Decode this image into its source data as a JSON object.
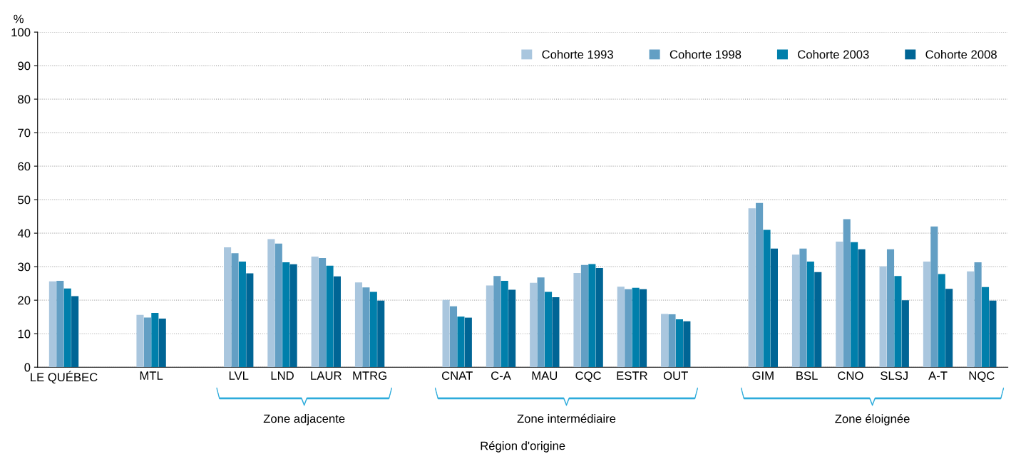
{
  "chart_data": {
    "type": "bar",
    "ylabel": "%",
    "xlabel": "Région d'origine",
    "categories": [
      "LE QUÉBEC",
      null,
      "MTL",
      null,
      "LVL",
      "LND",
      "LAUR",
      "MTRG",
      null,
      "CNAT",
      "C-A",
      "MAU",
      "CQC",
      "ESTR",
      "OUT",
      null,
      "GIM",
      "BSL",
      "CNO",
      "SLSJ",
      "A-T",
      "NQC"
    ],
    "series": [
      {
        "name": "Cohorte 1993",
        "color": "#a9c6de",
        "values": [
          25.6,
          null,
          15.6,
          null,
          35.8,
          38.2,
          33.0,
          25.3,
          null,
          20.1,
          24.4,
          25.2,
          28.1,
          24.0,
          15.9,
          null,
          47.4,
          33.6,
          37.5,
          30.1,
          31.5,
          28.6
        ]
      },
      {
        "name": "Cohorte 1998",
        "color": "#639fc4",
        "values": [
          25.8,
          null,
          14.8,
          null,
          34.0,
          36.9,
          32.6,
          23.8,
          null,
          18.2,
          27.2,
          26.8,
          30.5,
          23.3,
          15.8,
          null,
          49.0,
          35.4,
          44.2,
          35.2,
          42.0,
          31.3
        ]
      },
      {
        "name": "Cohorte 2003",
        "color": "#007fab",
        "values": [
          23.5,
          null,
          16.2,
          null,
          31.5,
          31.3,
          30.3,
          22.5,
          null,
          15.1,
          25.8,
          22.5,
          30.8,
          23.7,
          14.3,
          null,
          41.0,
          31.5,
          37.3,
          27.2,
          27.8,
          23.9
        ]
      },
      {
        "name": "Cohorte 2008",
        "color": "#006595",
        "values": [
          21.2,
          null,
          14.5,
          null,
          28.0,
          30.7,
          27.1,
          19.9,
          null,
          14.8,
          23.1,
          20.9,
          29.6,
          23.3,
          13.7,
          null,
          35.4,
          28.4,
          35.2,
          20.0,
          23.4,
          19.9
        ]
      }
    ],
    "ylim": [
      0,
      100
    ],
    "yticks": [
      0,
      10,
      20,
      30,
      40,
      50,
      60,
      70,
      80,
      90,
      100
    ],
    "grid": "y",
    "legend": "top right",
    "annotations": [
      "Zone adjacente",
      "Zone intermédiaire",
      "Zone éloignée"
    ]
  }
}
